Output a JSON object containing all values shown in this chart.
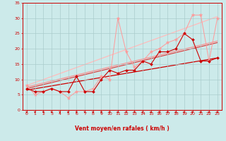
{
  "xlabel": "Vent moyen/en rafales ( km/h )",
  "background_color": "#cceaea",
  "grid_color": "#aacccc",
  "xlim": [
    -0.5,
    23.5
  ],
  "ylim": [
    0,
    35
  ],
  "xticks": [
    0,
    1,
    2,
    3,
    4,
    5,
    6,
    7,
    8,
    9,
    10,
    11,
    12,
    13,
    14,
    15,
    16,
    17,
    18,
    19,
    20,
    21,
    22,
    23
  ],
  "yticks": [
    0,
    5,
    10,
    15,
    20,
    25,
    30,
    35
  ],
  "line_dark1": {
    "x": [
      0,
      1,
      2,
      3,
      4,
      5,
      6,
      7,
      8,
      9,
      10,
      11,
      12,
      13,
      14,
      15,
      16,
      17,
      18,
      19,
      20,
      21,
      22,
      23
    ],
    "y": [
      7,
      6,
      6,
      7,
      6,
      6,
      11,
      6,
      6,
      10,
      13,
      12,
      13,
      13,
      16,
      15,
      19,
      19,
      20,
      25,
      23,
      16,
      16,
      17
    ],
    "color": "#cc0000",
    "marker": "D",
    "markersize": 2.0,
    "linewidth": 0.8
  },
  "line_light1": {
    "x": [
      0,
      1,
      2,
      3,
      4,
      5,
      6,
      7,
      8,
      9,
      10,
      11,
      12,
      13,
      14,
      15,
      16,
      17,
      18,
      19,
      20,
      21,
      22,
      23
    ],
    "y": [
      8,
      5,
      6,
      7,
      6,
      4,
      6,
      6,
      7,
      11,
      10,
      30,
      19,
      14,
      16,
      19,
      20,
      22,
      23,
      25,
      31,
      31,
      16,
      30
    ],
    "color": "#ff9999",
    "marker": "*",
    "markersize": 3.5,
    "linewidth": 0.7
  },
  "trend_dark_low": {
    "x": [
      0,
      23
    ],
    "y": [
      6.5,
      17.0
    ],
    "color": "#cc0000",
    "linewidth": 0.9
  },
  "trend_dark_mid": {
    "x": [
      0,
      23
    ],
    "y": [
      7.0,
      22.0
    ],
    "color": "#dd3333",
    "linewidth": 0.8
  },
  "trend_light_low": {
    "x": [
      0,
      23
    ],
    "y": [
      7.5,
      22.5
    ],
    "color": "#ff8888",
    "linewidth": 0.8
  },
  "trend_light_high": {
    "x": [
      0,
      23
    ],
    "y": [
      8.0,
      30.5
    ],
    "color": "#ffbbbb",
    "linewidth": 0.9
  },
  "xlabel_color": "#cc0000",
  "tick_color": "#cc0000",
  "axis_color": "#cc0000",
  "tick_fontsize": 4.5,
  "xlabel_fontsize": 5.5
}
